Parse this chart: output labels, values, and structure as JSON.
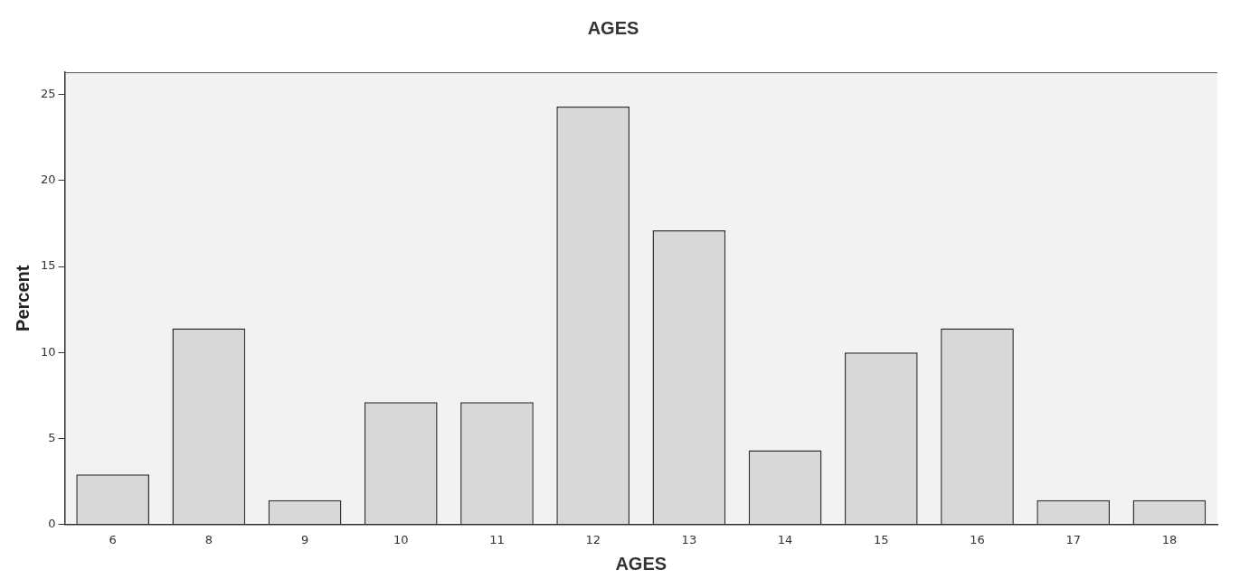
{
  "chart_data": {
    "type": "bar",
    "title": "AGES",
    "xlabel": "AGES",
    "ylabel": "Percent",
    "categories": [
      "6",
      "8",
      "9",
      "10",
      "11",
      "12",
      "13",
      "14",
      "15",
      "16",
      "17",
      "18"
    ],
    "values": [
      2.9,
      11.4,
      1.4,
      7.1,
      7.1,
      24.3,
      17.1,
      4.3,
      10.0,
      11.4,
      1.4,
      1.4
    ],
    "color": "#d8d8d8",
    "ylim": [
      0,
      26.3
    ],
    "yticks": [
      0,
      5,
      10,
      15,
      20,
      25
    ],
    "grid": false,
    "legend": false
  }
}
